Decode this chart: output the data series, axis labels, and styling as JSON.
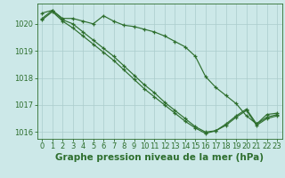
{
  "title": "Graphe pression niveau de la mer (hPa)",
  "background_color": "#cce8e8",
  "grid_color": "#aacccc",
  "line_color": "#2d6e2d",
  "x": [
    0,
    1,
    2,
    3,
    4,
    5,
    6,
    7,
    8,
    9,
    10,
    11,
    12,
    13,
    14,
    15,
    16,
    17,
    18,
    19,
    20,
    21,
    22,
    23
  ],
  "line1": [
    1020.2,
    1020.5,
    1020.2,
    1020.2,
    1020.1,
    1020.0,
    1020.3,
    1020.1,
    1019.95,
    1019.9,
    1019.8,
    1019.7,
    1019.55,
    1019.35,
    1019.15,
    1018.8,
    1018.05,
    1017.65,
    1017.35,
    1017.05,
    1016.6,
    1016.3,
    1016.65,
    1016.7
  ],
  "line2": [
    1020.4,
    1020.5,
    1020.15,
    1020.0,
    1019.7,
    1019.4,
    1019.1,
    1018.8,
    1018.45,
    1018.1,
    1017.75,
    1017.45,
    1017.1,
    1016.8,
    1016.5,
    1016.2,
    1016.0,
    1016.05,
    1016.3,
    1016.6,
    1016.85,
    1016.3,
    1016.55,
    1016.65
  ],
  "line3": [
    1020.15,
    1020.45,
    1020.1,
    1019.85,
    1019.55,
    1019.25,
    1018.95,
    1018.65,
    1018.3,
    1017.95,
    1017.6,
    1017.3,
    1017.0,
    1016.7,
    1016.4,
    1016.15,
    1015.95,
    1016.05,
    1016.25,
    1016.55,
    1016.8,
    1016.25,
    1016.5,
    1016.6
  ],
  "ylim": [
    1015.75,
    1020.75
  ],
  "yticks": [
    1016,
    1017,
    1018,
    1019,
    1020
  ],
  "xticks": [
    0,
    1,
    2,
    3,
    4,
    5,
    6,
    7,
    8,
    9,
    10,
    11,
    12,
    13,
    14,
    15,
    16,
    17,
    18,
    19,
    20,
    21,
    22,
    23
  ],
  "title_fontsize": 7.5,
  "tick_fontsize": 6.0
}
